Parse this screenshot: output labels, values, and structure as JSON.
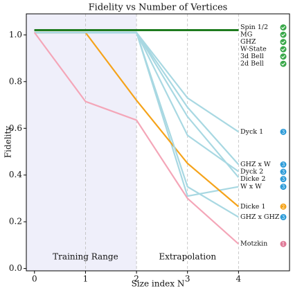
{
  "chart_data": {
    "type": "line",
    "title": "Fidelity vs Number of Vertices",
    "xlabel": "Size index N",
    "ylabel": "Fidelity",
    "x": [
      0,
      1,
      2,
      3,
      4
    ],
    "xlim": [
      -0.16,
      5.0
    ],
    "xticks": [
      0,
      1,
      2,
      3,
      4
    ],
    "ylim": [
      -0.01,
      1.09
    ],
    "yticks": [
      {
        "value": 0,
        "label": "0.0"
      },
      0.2,
      0.4,
      0.6,
      0.8,
      {
        "value": 1,
        "label": "1.0"
      }
    ],
    "grid": true,
    "shaded_region": {
      "x": [
        -0.16,
        2
      ],
      "color": "#e8e8f8"
    },
    "annotations": [
      {
        "text": "Training Range",
        "x": 1,
        "y": 0.05
      },
      {
        "text": "Extrapolation",
        "x": 3,
        "y": 0.05
      }
    ],
    "series": [
      {
        "name": "Spin 1/2",
        "color": "#1e7b1e",
        "values": [
          1.02,
          1.02,
          1.02,
          1.02,
          1.02
        ]
      },
      {
        "name": "MG",
        "color": "#1e7b1e",
        "values": [
          1.02,
          1.02,
          1.02,
          1.02,
          1.02
        ]
      },
      {
        "name": "GHZ",
        "color": "#1e7b1e",
        "values": [
          1.02,
          1.02,
          1.02,
          1.02,
          1.02
        ]
      },
      {
        "name": "W-State",
        "color": "#1e7b1e",
        "values": [
          1.02,
          1.02,
          1.02,
          1.02,
          1.02
        ]
      },
      {
        "name": "3d Bell",
        "color": "#1e7b1e",
        "values": [
          1.02,
          1.02,
          1.02,
          1.02,
          1.02
        ]
      },
      {
        "name": "2d Bell",
        "color": "#1e7b1e",
        "values": [
          1.02,
          1.02,
          1.02,
          1.02,
          1.02
        ]
      },
      {
        "name": "Dyck 1",
        "color": "#a8d8e2",
        "badge": "3",
        "badge_color": "#2a9ad8",
        "values": [
          1.01,
          1.01,
          1.01,
          0.73,
          0.585
        ]
      },
      {
        "name": "GHZ x W",
        "color": "#a8d8e2",
        "badge": "3",
        "badge_color": "#2a9ad8",
        "values": [
          1.01,
          1.01,
          1.01,
          0.69,
          0.445
        ]
      },
      {
        "name": "Dyck 2",
        "color": "#a8d8e2",
        "badge": "3",
        "badge_color": "#2a9ad8",
        "values": [
          1.01,
          1.01,
          1.01,
          0.57,
          0.415
        ]
      },
      {
        "name": "Dicke 2",
        "color": "#a8d8e2",
        "badge": "3",
        "badge_color": "#2a9ad8",
        "values": [
          1.01,
          1.01,
          1.01,
          0.65,
          0.39
        ]
      },
      {
        "name": "W x W",
        "color": "#a8d8e2",
        "badge": "3",
        "badge_color": "#2a9ad8",
        "values": [
          1.01,
          1.01,
          1.01,
          0.31,
          0.35
        ]
      },
      {
        "name": "Dicke 1",
        "color": "#f5a31a",
        "badge": "2",
        "badge_color": "#f5a31a",
        "values": [
          1.01,
          1.01,
          0.72,
          0.45,
          0.265
        ]
      },
      {
        "name": "GHZ x GHZ",
        "color": "#a8d8e2",
        "badge": "3",
        "badge_color": "#2a9ad8",
        "values": [
          1.01,
          1.01,
          1.01,
          0.35,
          0.22
        ]
      },
      {
        "name": "Motzkin",
        "color": "#f4a6b8",
        "badge": "1",
        "badge_color": "#e07a98",
        "values": [
          1.01,
          0.715,
          0.635,
          0.3,
          0.105
        ]
      }
    ]
  }
}
